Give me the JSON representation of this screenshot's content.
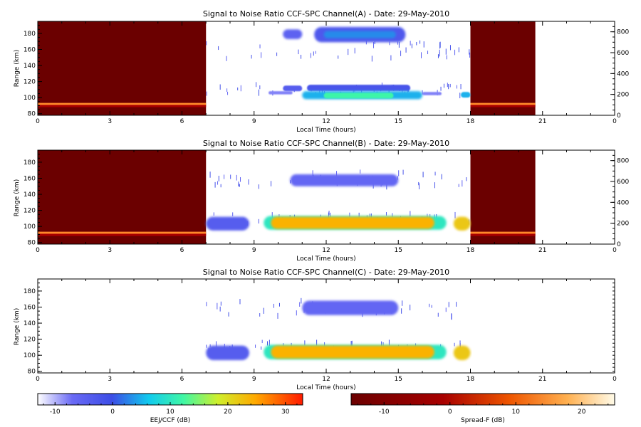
{
  "chart_data": [
    {
      "type": "heatmap",
      "title": "Signal to Noise Ratio CCF-SPC Channel(A) - Date: 29-May-2010",
      "xlabel": "Local Time (hours)",
      "ylabel": "Range (km)",
      "xlim": [
        0,
        24
      ],
      "ylim": [
        78,
        195
      ],
      "xticks": [
        "0",
        "3",
        "6",
        "9",
        "12",
        "15",
        "18",
        "21",
        "0"
      ],
      "yticks": [
        "80",
        "100",
        "120",
        "140",
        "160",
        "180"
      ],
      "right_ylim": [
        0,
        900
      ],
      "right_yticks": [
        "0",
        "200",
        "400",
        "600",
        "800"
      ],
      "spread_f_windows": [
        [
          0,
          7
        ],
        [
          18,
          20.7
        ]
      ],
      "spread_f_layers": [
        {
          "range_km": 92,
          "value_db": 15
        },
        {
          "range_km": 89.5,
          "value_db": 8
        }
      ],
      "eej_blobs": [
        {
          "t": [
            10.2,
            11.0
          ],
          "range_km": [
            173,
            185
          ],
          "snr_db": -5
        },
        {
          "t": [
            11.5,
            15.3
          ],
          "range_km": [
            169,
            188
          ],
          "snr_db": -3
        },
        {
          "t": [
            11.9,
            14.9
          ],
          "range_km": [
            174,
            183
          ],
          "snr_db": 3
        },
        {
          "t": [
            10.2,
            11.0
          ],
          "range_km": [
            108,
            115
          ],
          "snr_db": -4
        },
        {
          "t": [
            11.2,
            15.5
          ],
          "range_km": [
            108,
            116
          ],
          "snr_db": -2
        },
        {
          "t": [
            11.0,
            16.0
          ],
          "range_km": [
            98,
            108
          ],
          "snr_db": 5
        },
        {
          "t": [
            11.9,
            14.8
          ],
          "range_km": [
            99,
            106
          ],
          "snr_db": 12
        },
        {
          "t": [
            9.6,
            10.6
          ],
          "range_km": [
            104,
            108
          ],
          "snr_db": -8
        },
        {
          "t": [
            16.0,
            16.8
          ],
          "range_km": [
            103,
            107
          ],
          "snr_db": -8
        },
        {
          "t": [
            17.6,
            18.0
          ],
          "range_km": [
            100,
            107
          ],
          "snr_db": 5
        }
      ]
    },
    {
      "type": "heatmap",
      "title": "Signal to Noise Ratio CCF-SPC Channel(B) - Date: 29-May-2010",
      "xlabel": "Local Time (hours)",
      "ylabel": "Range (km)",
      "xlim": [
        0,
        24
      ],
      "ylim": [
        78,
        195
      ],
      "xticks": [
        "0",
        "3",
        "6",
        "9",
        "12",
        "15",
        "18",
        "21",
        "0"
      ],
      "yticks": [
        "80",
        "100",
        "120",
        "140",
        "160",
        "180"
      ],
      "right_ylim": [
        0,
        900
      ],
      "right_yticks": [
        "0",
        "200",
        "400",
        "600",
        "800"
      ],
      "spread_f_windows": [
        [
          0,
          7
        ],
        [
          18,
          20.7
        ]
      ],
      "spread_f_layers": [
        {
          "range_km": 92,
          "value_db": 15
        },
        {
          "range_km": 89.5,
          "value_db": 8
        }
      ],
      "eej_blobs": [
        {
          "t": [
            7.0,
            8.8
          ],
          "range_km": [
            95,
            112
          ],
          "snr_db": -4
        },
        {
          "t": [
            9.4,
            17.0
          ],
          "range_km": [
            96,
            113
          ],
          "snr_db": 10
        },
        {
          "t": [
            9.7,
            16.5
          ],
          "range_km": [
            97,
            112
          ],
          "snr_db": 24
        },
        {
          "t": [
            17.3,
            18.0
          ],
          "range_km": [
            95,
            112
          ],
          "snr_db": 22
        },
        {
          "t": [
            10.5,
            15.0
          ],
          "range_km": [
            150,
            165
          ],
          "snr_db": -6
        }
      ]
    },
    {
      "type": "heatmap",
      "title": "Signal to Noise Ratio CCF-SPC Channel(C) - Date: 29-May-2010",
      "xlabel": "Local Time (hours)",
      "ylabel": "Range (km)",
      "xlim": [
        0,
        24
      ],
      "ylim": [
        78,
        195
      ],
      "xticks": [
        "0",
        "3",
        "6",
        "9",
        "12",
        "15",
        "18",
        "21",
        "0"
      ],
      "yticks": [
        "80",
        "100",
        "120",
        "140",
        "160",
        "180"
      ],
      "eej_blobs": [
        {
          "t": [
            7.0,
            8.8
          ],
          "range_km": [
            94,
            112
          ],
          "snr_db": -4
        },
        {
          "t": [
            9.4,
            17.0
          ],
          "range_km": [
            95,
            113
          ],
          "snr_db": 10
        },
        {
          "t": [
            9.7,
            16.5
          ],
          "range_km": [
            96,
            112
          ],
          "snr_db": 24
        },
        {
          "t": [
            17.3,
            18.0
          ],
          "range_km": [
            94,
            112
          ],
          "snr_db": 22
        },
        {
          "t": [
            11.0,
            15.0
          ],
          "range_km": [
            150,
            168
          ],
          "snr_db": -6
        }
      ]
    }
  ],
  "colorbars": [
    {
      "label": "EEJ/CCF (dB)",
      "range": [
        -13,
        33
      ],
      "ticks": [
        "-10",
        "0",
        "10",
        "20",
        "30"
      ],
      "tick_values": [
        -10,
        0,
        10,
        20,
        30
      ],
      "colormap": "rainbow"
    },
    {
      "label": "Spread-F (dB)",
      "range": [
        -15,
        25
      ],
      "ticks": [
        "-10",
        "0",
        "10",
        "20"
      ],
      "tick_values": [
        -10,
        0,
        10,
        20
      ],
      "colormap": "heat"
    }
  ]
}
